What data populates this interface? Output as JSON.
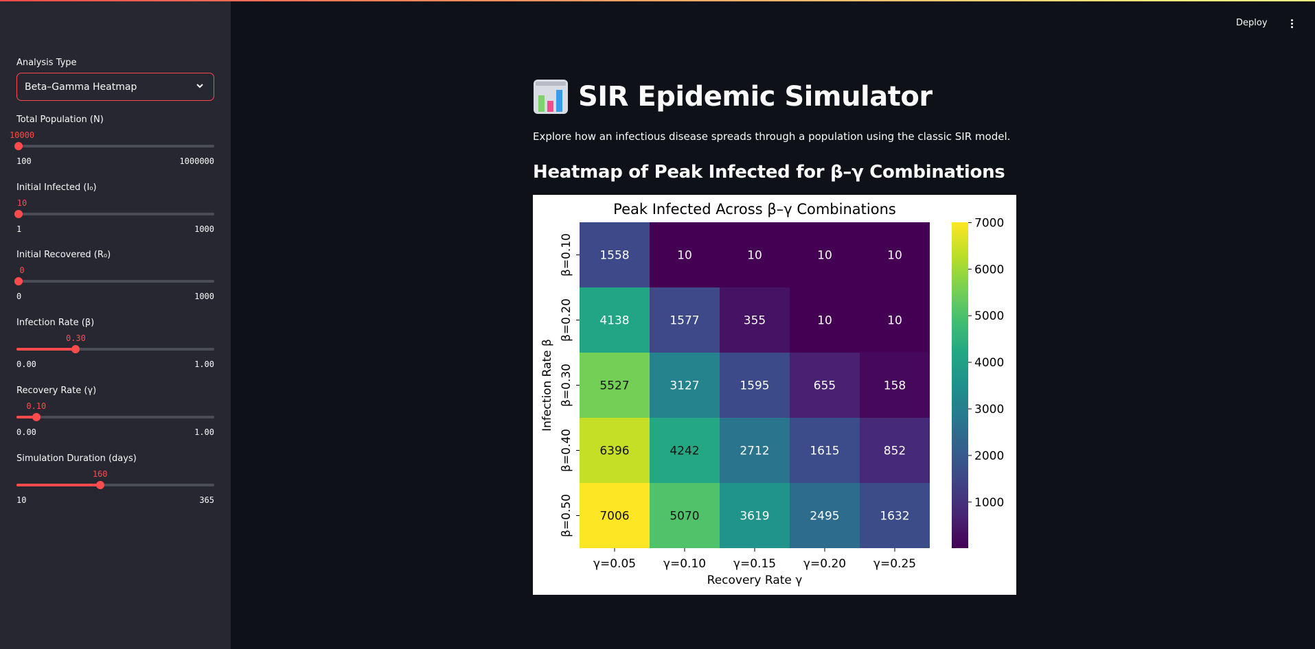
{
  "sidebar": {
    "analysis_type": {
      "label": "Analysis Type",
      "selected": "Beta–Gamma Heatmap"
    },
    "sliders": [
      {
        "label": "Total Population (N)",
        "value": "10000",
        "min": "100",
        "max": "1000000",
        "fraction": 0.0
      },
      {
        "label": "Initial Infected (I₀)",
        "value": "10",
        "min": "1",
        "max": "1000",
        "fraction": 0.009
      },
      {
        "label": "Initial Recovered (R₀)",
        "value": "0",
        "min": "0",
        "max": "1000",
        "fraction": 0.0
      },
      {
        "label": "Infection Rate (β)",
        "value": "0.30",
        "min": "0.00",
        "max": "1.00",
        "fraction": 0.3
      },
      {
        "label": "Recovery Rate (γ)",
        "value": "0.10",
        "min": "0.00",
        "max": "1.00",
        "fraction": 0.1
      },
      {
        "label": "Simulation Duration (days)",
        "value": "160",
        "min": "10",
        "max": "365",
        "fraction": 0.4225
      }
    ]
  },
  "header": {
    "deploy_label": "Deploy"
  },
  "main": {
    "title": "SIR Epidemic Simulator",
    "subtitle": "Explore how an infectious disease spreads through a population using the classic SIR model.",
    "section_heading": "Heatmap of Peak Infected for β–γ Combinations"
  },
  "colors": {
    "accent": "#ff4b4b",
    "background": "#0e1117",
    "sidebar": "#262730"
  },
  "chart_data": {
    "type": "heatmap",
    "title": "Peak Infected Across β–γ Combinations",
    "xlabel": "Recovery Rate γ",
    "ylabel": "Infection Rate β",
    "x_categories": [
      "γ=0.05",
      "γ=0.10",
      "γ=0.15",
      "γ=0.20",
      "γ=0.25"
    ],
    "y_categories": [
      "β=0.10",
      "β=0.20",
      "β=0.30",
      "β=0.40",
      "β=0.50"
    ],
    "values": [
      [
        1558,
        10,
        10,
        10,
        10
      ],
      [
        4138,
        1577,
        355,
        10,
        10
      ],
      [
        5527,
        3127,
        1595,
        655,
        158
      ],
      [
        6396,
        4242,
        2712,
        1615,
        852
      ],
      [
        7006,
        5070,
        3619,
        2495,
        1632
      ]
    ],
    "colormap": "viridis",
    "colorbar_ticks": [
      1000,
      2000,
      3000,
      4000,
      5000,
      6000,
      7000
    ],
    "colorbar_range": [
      10,
      7006
    ]
  }
}
